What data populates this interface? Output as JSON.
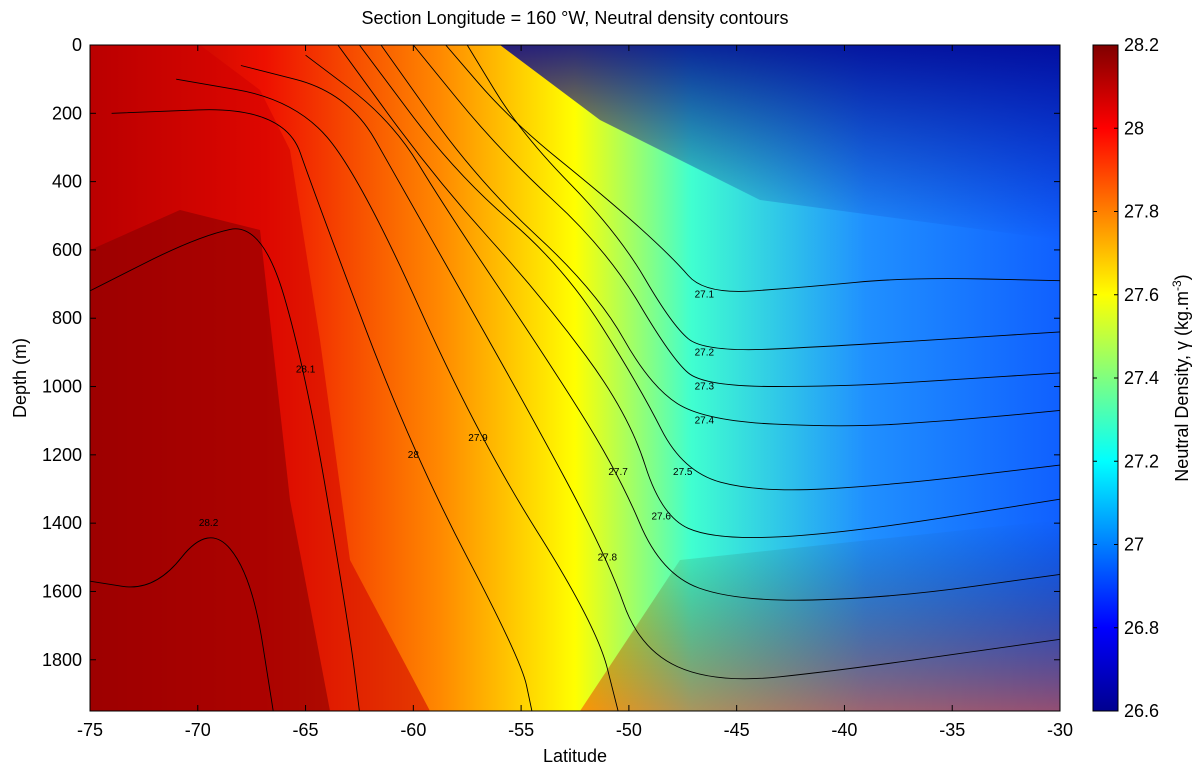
{
  "chart_data": {
    "type": "heatmap",
    "title": "Section Longitude = 160 °W, Neutral density contours",
    "xlabel": "Latitude",
    "ylabel": "Depth (m)",
    "xlim": [
      -75,
      -30
    ],
    "ylim": [
      0,
      1950
    ],
    "y_reversed": true,
    "x_ticks": [
      "-75",
      "-70",
      "-65",
      "-60",
      "-55",
      "-50",
      "-45",
      "-40",
      "-35",
      "-30"
    ],
    "x_tick_values": [
      -75,
      -70,
      -65,
      -60,
      -55,
      -50,
      -45,
      -40,
      -35,
      -30
    ],
    "y_ticks": [
      "0",
      "200",
      "400",
      "600",
      "800",
      "1000",
      "1200",
      "1400",
      "1600",
      "1800"
    ],
    "y_tick_values": [
      0,
      200,
      400,
      600,
      800,
      1000,
      1200,
      1400,
      1600,
      1800
    ],
    "colorbar": {
      "label_prefix": "Neutral Density, γ (kg.m",
      "label_sup": "-3",
      "label_suffix": ")",
      "range": [
        26.6,
        28.2
      ],
      "ticks": [
        "26.6",
        "26.8",
        "27",
        "27.2",
        "27.4",
        "27.6",
        "27.8",
        "28",
        "28.2"
      ],
      "tick_values": [
        26.6,
        26.8,
        27.0,
        27.2,
        27.4,
        27.6,
        27.8,
        28.0,
        28.2
      ],
      "colormap": "jet"
    },
    "grid": false,
    "contours": [
      {
        "level": 27.1,
        "label": "27.1",
        "points": [
          [
            -58.5,
            0
          ],
          [
            -55.5,
            220
          ],
          [
            -51,
            450
          ],
          [
            -48,
            620
          ],
          [
            -46.5,
            730
          ],
          [
            -42,
            710
          ],
          [
            -37,
            680
          ],
          [
            -30,
            690
          ]
        ]
      },
      {
        "level": 27.2,
        "label": "27.2",
        "points": [
          [
            -57.5,
            0
          ],
          [
            -55,
            260
          ],
          [
            -50.5,
            550
          ],
          [
            -48,
            820
          ],
          [
            -46.5,
            900
          ],
          [
            -40,
            880
          ],
          [
            -35,
            860
          ],
          [
            -30,
            840
          ]
        ]
      },
      {
        "level": 27.3,
        "label": "27.3",
        "points": [
          [
            -60,
            0
          ],
          [
            -56,
            310
          ],
          [
            -51,
            600
          ],
          [
            -48,
            920
          ],
          [
            -46.5,
            1000
          ],
          [
            -40,
            1000
          ],
          [
            -35,
            980
          ],
          [
            -30,
            960
          ]
        ]
      },
      {
        "level": 27.4,
        "label": "27.4",
        "points": [
          [
            -61.5,
            0
          ],
          [
            -57,
            400
          ],
          [
            -51.5,
            720
          ],
          [
            -49,
            1000
          ],
          [
            -46.5,
            1100
          ],
          [
            -40,
            1120
          ],
          [
            -35,
            1100
          ],
          [
            -30,
            1070
          ]
        ]
      },
      {
        "level": 27.5,
        "label": "27.5",
        "points": [
          [
            -62.5,
            0
          ],
          [
            -58,
            380
          ],
          [
            -53,
            650
          ],
          [
            -49.5,
            1000
          ],
          [
            -47.5,
            1250
          ],
          [
            -44,
            1310
          ],
          [
            -38,
            1290
          ],
          [
            -30,
            1230
          ]
        ]
      },
      {
        "level": 27.6,
        "label": "27.6",
        "points": [
          [
            -63.5,
            0
          ],
          [
            -59,
            390
          ],
          [
            -54,
            740
          ],
          [
            -50,
            1080
          ],
          [
            -48.5,
            1380
          ],
          [
            -46,
            1450
          ],
          [
            -40,
            1430
          ],
          [
            -30,
            1330
          ]
        ]
      },
      {
        "level": 27.7,
        "label": "27.7",
        "points": [
          [
            -65,
            30
          ],
          [
            -61,
            220
          ],
          [
            -58.5,
            480
          ],
          [
            -54,
            900
          ],
          [
            -50.5,
            1250
          ],
          [
            -48.5,
            1550
          ],
          [
            -45,
            1630
          ],
          [
            -38,
            1620
          ],
          [
            -30,
            1550
          ]
        ]
      },
      {
        "level": 27.8,
        "label": "27.8",
        "points": [
          [
            -68,
            60
          ],
          [
            -63,
            140
          ],
          [
            -60.5,
            420
          ],
          [
            -55,
            1030
          ],
          [
            -51,
            1500
          ],
          [
            -49.5,
            1770
          ],
          [
            -46,
            1870
          ],
          [
            -40,
            1830
          ],
          [
            -30,
            1740
          ]
        ]
      },
      {
        "level": 27.9,
        "label": "27.9",
        "points": [
          [
            -71,
            100
          ],
          [
            -65.5,
            160
          ],
          [
            -62.5,
            380
          ],
          [
            -57,
            1150
          ],
          [
            -51.5,
            1700
          ],
          [
            -50.5,
            1950
          ]
        ]
      },
      {
        "level": 28.0,
        "label": "28",
        "points": [
          [
            -74,
            200
          ],
          [
            -66,
            180
          ],
          [
            -64.5,
            450
          ],
          [
            -60,
            1200
          ],
          [
            -55,
            1800
          ],
          [
            -54.5,
            1950
          ]
        ]
      },
      {
        "level": 28.1,
        "label": "28.1",
        "points": [
          [
            -75,
            720
          ],
          [
            -70,
            560
          ],
          [
            -67,
            520
          ],
          [
            -65,
            950
          ],
          [
            -63,
            1700
          ],
          [
            -62.5,
            1950
          ]
        ]
      },
      {
        "level": 28.2,
        "label": "28.2",
        "points": [
          [
            -75,
            1570
          ],
          [
            -72,
            1600
          ],
          [
            -69.5,
            1400
          ],
          [
            -67.5,
            1550
          ],
          [
            -66.5,
            1950
          ]
        ]
      }
    ]
  }
}
